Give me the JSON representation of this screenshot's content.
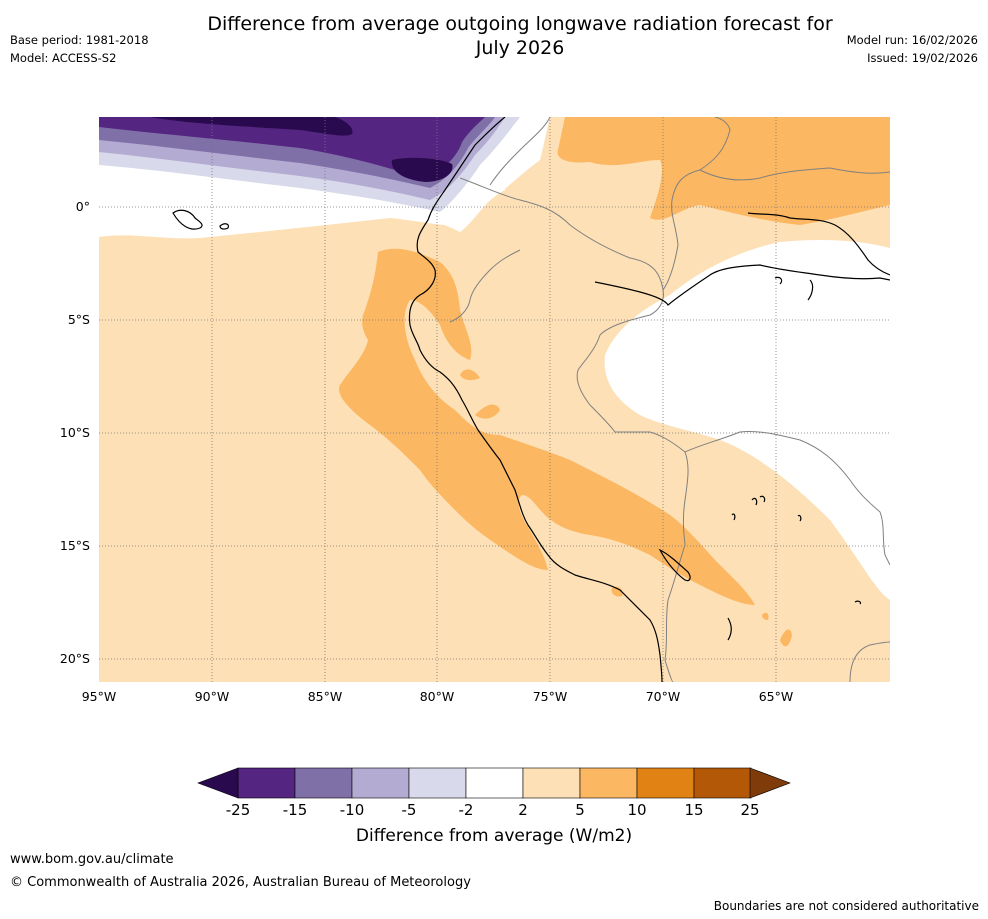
{
  "title": "Difference from average outgoing longwave radiation forecast for July 2026",
  "title_line1": "Difference from average outgoing longwave radiation forecast for",
  "title_line2": "July 2026",
  "header_left": {
    "base_period": "Base period: 1981-2018",
    "model": "Model: ACCESS-S2"
  },
  "header_right": {
    "model_run": "Model run: 16/02/2026",
    "issued": "Issued: 19/02/2026"
  },
  "map": {
    "lat_labels": [
      "0°",
      "5°S",
      "10°S",
      "15°S",
      "20°S"
    ],
    "lon_labels": [
      "95°W",
      "90°W",
      "85°W",
      "80°W",
      "75°W",
      "70°W",
      "65°W"
    ],
    "region": "Western South America and adjacent eastern Pacific",
    "gridlines": "dotted"
  },
  "colorbar": {
    "label": "Difference from average (W/m2)",
    "ticks": [
      "-25",
      "-15",
      "-10",
      "-5",
      "-2",
      "2",
      "5",
      "10",
      "15",
      "25"
    ],
    "colors": [
      "#2a0a4e",
      "#552582",
      "#8070a8",
      "#b3abd2",
      "#d8d9ea",
      "#ffffff",
      "#fde0b5",
      "#fbb762",
      "#e08314",
      "#b35807",
      "#7f3c0a"
    ],
    "extend": "both"
  },
  "footer": {
    "website": "www.bom.gov.au/climate",
    "copyright": "© Commonwealth of Australia 2026, Australian Bureau of Meteorology",
    "boundaries_note": "Boundaries are not considered authoritative"
  }
}
